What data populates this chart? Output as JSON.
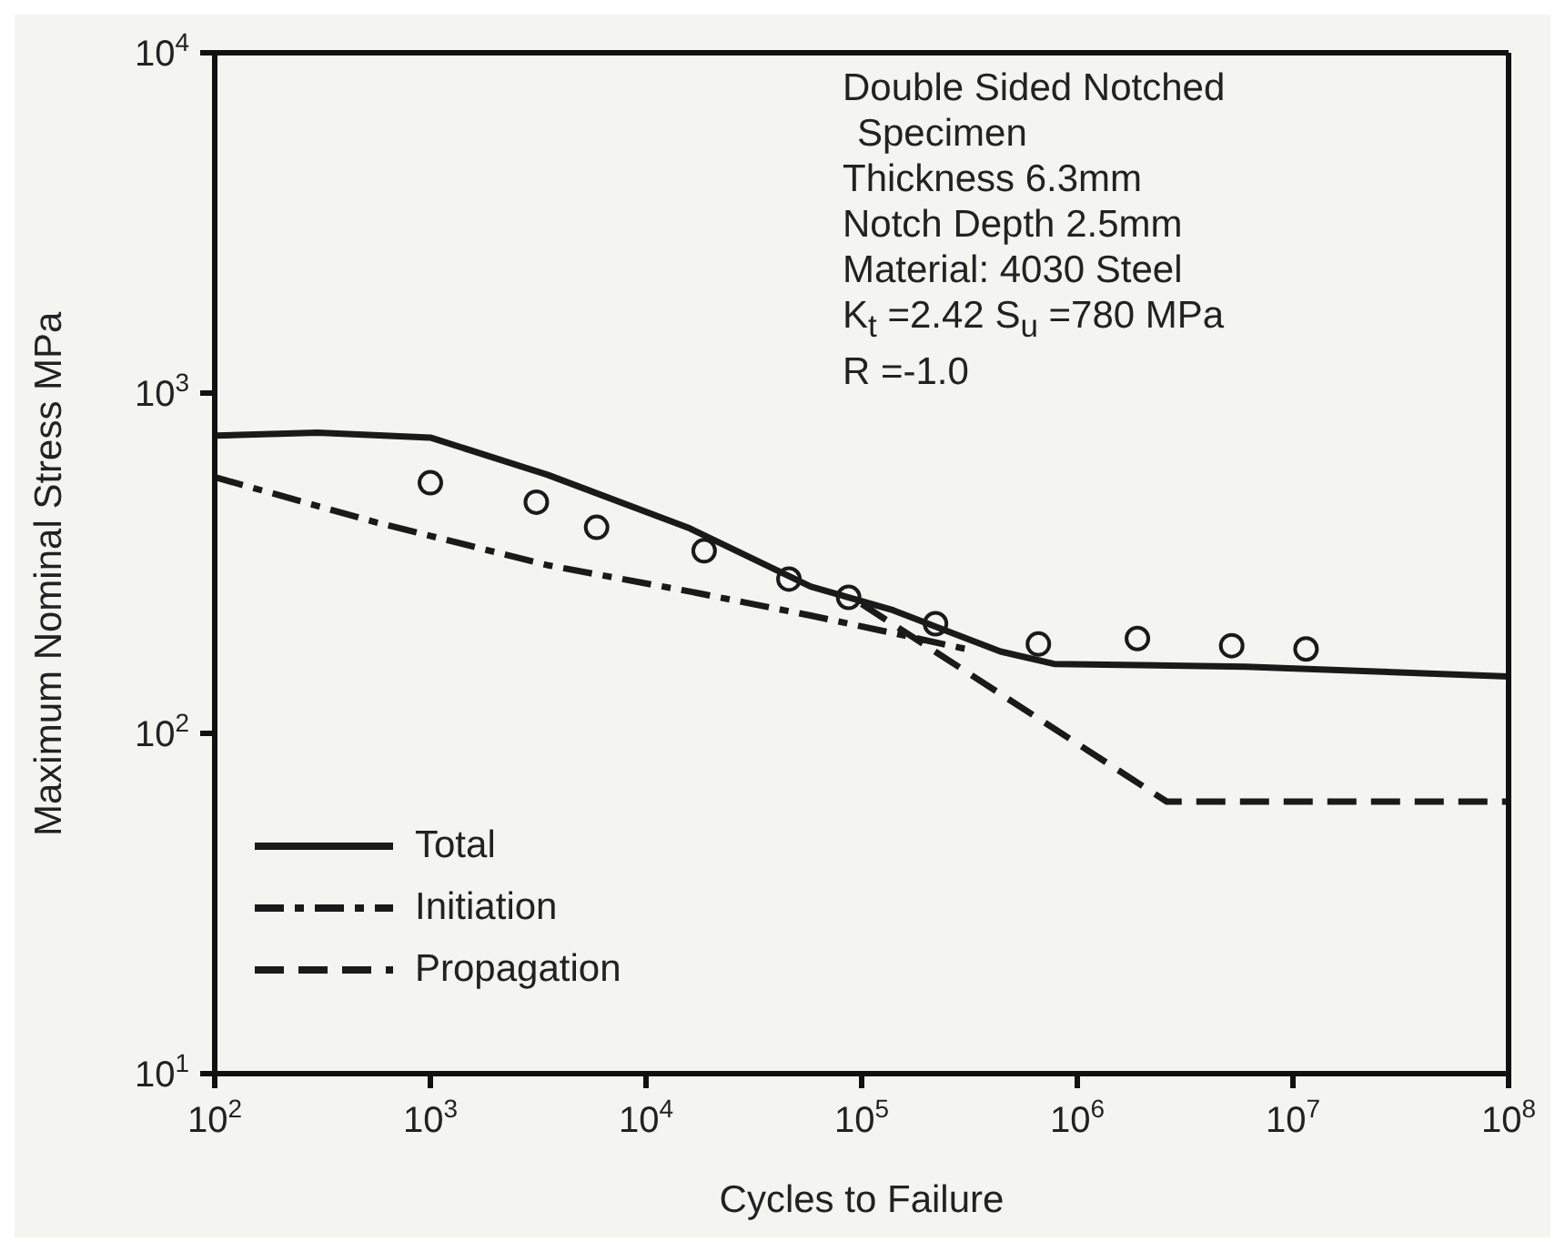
{
  "chart_data": {
    "type": "line",
    "xlabel": "Cycles to Failure",
    "ylabel": "Maximum Nominal Stress MPa",
    "log": "xy",
    "grid": false,
    "legend": "bottom left",
    "xlim": [
      100,
      100000000
    ],
    "ylim": [
      10,
      10000
    ],
    "xticks": [
      {
        "value": 100,
        "label": "10$^{2}$"
      },
      {
        "value": 1000,
        "label": "10$^{3}$"
      },
      {
        "value": 10000,
        "label": "10$^{4}$"
      },
      {
        "value": 100000,
        "label": "10$^{5}$"
      },
      {
        "value": 1000000,
        "label": "10$^{6}$"
      },
      {
        "value": 10000000,
        "label": "10$^{7}$"
      },
      {
        "value": 100000000,
        "label": "10$^{8}$"
      }
    ],
    "yticks": [
      {
        "value": 10,
        "label": "10$^{1}$"
      },
      {
        "value": 100,
        "label": "10$^{2}$"
      },
      {
        "value": 1000,
        "label": "10$^{3}$"
      },
      {
        "value": 10000,
        "label": "10$^{4}$"
      }
    ],
    "annotations": [
      "Double Sided Notched",
      "Specimen",
      "Thickness  6.3mm",
      "Notch Depth  2.5mm",
      "Material: 4030 Steel",
      "K$_{t}$ =2.42    S$_{u}$ =780 MPa",
      "R =-1.0"
    ],
    "series": [
      {
        "name": "Total",
        "color": "#1a1a1a",
        "line_style": "solid",
        "marker": "none",
        "x": [
          100,
          300,
          1000,
          3500,
          16000,
          58000,
          140000,
          440000,
          780000,
          6000000,
          100000000
        ],
        "values": [
          750,
          765,
          740,
          575,
          400,
          270,
          230,
          174,
          160,
          157,
          147
        ]
      },
      {
        "name": "Initiation",
        "color": "#1a1a1a",
        "line_style": "dashdot",
        "marker": "none",
        "x": [
          100,
          560,
          3500,
          16000,
          58000,
          140000,
          330000
        ],
        "values": [
          566,
          417,
          312,
          261,
          222,
          197,
          175
        ]
      },
      {
        "name": "Propagation",
        "color": "#1a1a1a",
        "line_style": "dashed",
        "marker": "none",
        "x": [
          100000,
          2600000,
          100000000
        ],
        "values": [
          240,
          63,
          63
        ]
      },
      {
        "type": "scatter",
        "color": "#1a1a1a",
        "marker": "circle",
        "x": [
          1000,
          3100,
          5900,
          18600,
          46000,
          87000,
          220000,
          660000,
          1900000,
          5200000,
          11500000
        ],
        "values": [
          545,
          478,
          403,
          344,
          284,
          251,
          210,
          183,
          190,
          181,
          177
        ]
      }
    ]
  }
}
